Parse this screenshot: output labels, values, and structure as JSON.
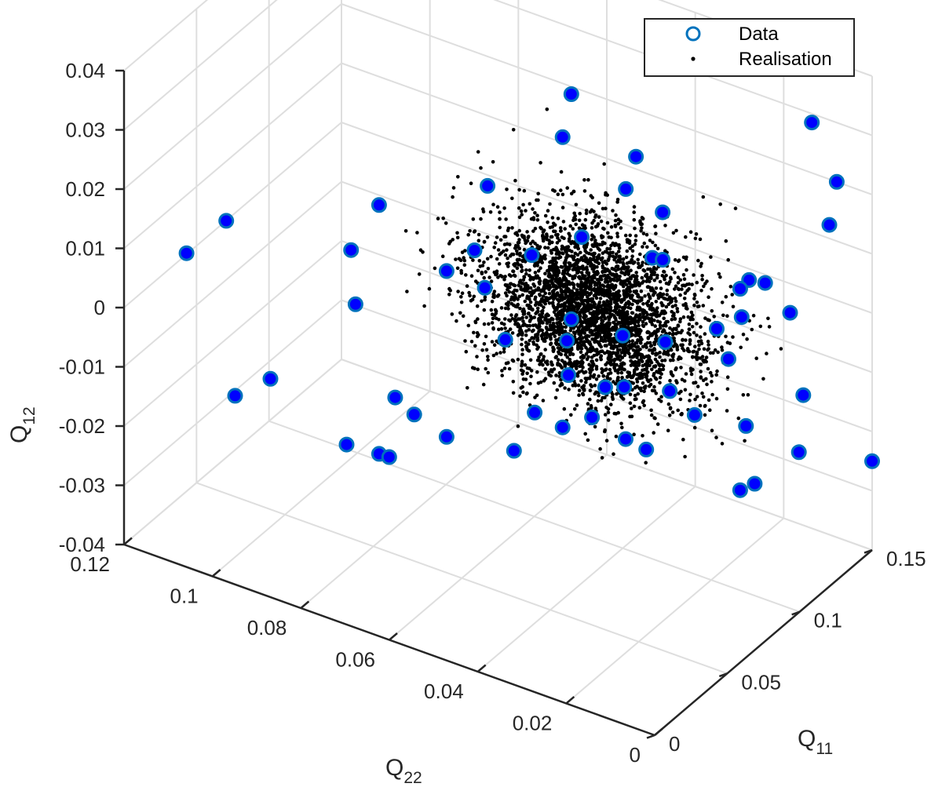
{
  "chart_data": {
    "type": "scatter",
    "dimensions": 3,
    "axes": {
      "x": {
        "label": "Q",
        "label_subscript": "11",
        "lim": [
          0,
          0.15
        ],
        "ticks": [
          0,
          0.05,
          0.1,
          0.15
        ],
        "tick_labels": [
          "0",
          "0.05",
          "0.1",
          "0.15"
        ]
      },
      "y": {
        "label": "Q",
        "label_subscript": "22",
        "lim": [
          0,
          0.12
        ],
        "ticks": [
          0,
          0.02,
          0.04,
          0.06,
          0.08,
          0.1,
          0.12
        ],
        "tick_labels": [
          "0",
          "0.02",
          "0.04",
          "0.06",
          "0.08",
          "0.1",
          "0.12"
        ]
      },
      "z": {
        "label": "Q",
        "label_subscript": "12",
        "lim": [
          -0.04,
          0.04
        ],
        "ticks": [
          -0.04,
          -0.03,
          -0.02,
          -0.01,
          0,
          0.01,
          0.02,
          0.03,
          0.04
        ],
        "tick_labels": [
          "-0.04",
          "-0.03",
          "-0.02",
          "-0.01",
          "0",
          "0.01",
          "0.02",
          "0.03",
          "0.04"
        ]
      }
    },
    "grid": true,
    "legend": {
      "position": "top-right",
      "entries": [
        {
          "label": "Data"
        },
        {
          "label": "Realisation"
        }
      ]
    },
    "series": [
      {
        "name": "Data",
        "marker": "circle",
        "edge_color": "#0072BD",
        "face_color": "#0000ff",
        "points": [
          [
            0.095,
            0.05,
            0.035
          ],
          [
            0.089,
            0.05,
            0.029
          ],
          [
            0.145,
            0.012,
            0.03
          ],
          [
            0.15,
            0.008,
            0.02
          ],
          [
            0.151,
            0.01,
            0.012
          ],
          [
            0.103,
            0.038,
            0.026
          ],
          [
            0.096,
            0.038,
            0.022
          ],
          [
            0.097,
            0.03,
            0.02
          ],
          [
            0.083,
            0.065,
            0.018
          ],
          [
            0.06,
            0.082,
            0.015
          ],
          [
            0.09,
            0.046,
            0.013
          ],
          [
            0.096,
            0.032,
            0.012
          ],
          [
            0.097,
            0.03,
            0.012
          ],
          [
            0.074,
            0.065,
            0.009
          ],
          [
            0.083,
            0.055,
            0.009
          ],
          [
            0.12,
            0.018,
            0.007
          ],
          [
            0.125,
            0.016,
            0.006
          ],
          [
            0.12,
            0.02,
            0.005
          ],
          [
            0.059,
            0.088,
            0.006
          ],
          [
            0.04,
            0.11,
            0.009
          ],
          [
            0.037,
            0.118,
            0.002
          ],
          [
            0.07,
            0.07,
            0.005
          ],
          [
            0.075,
            0.063,
            0.003
          ],
          [
            0.121,
            0.02,
            0.0
          ],
          [
            0.13,
            0.012,
            0.001
          ],
          [
            0.116,
            0.024,
            -0.002
          ],
          [
            0.056,
            0.086,
            -0.002
          ],
          [
            0.095,
            0.05,
            -0.003
          ],
          [
            0.103,
            0.041,
            -0.005
          ],
          [
            0.108,
            0.033,
            -0.005
          ],
          [
            0.08,
            0.06,
            -0.006
          ],
          [
            0.092,
            0.05,
            -0.006
          ],
          [
            0.118,
            0.022,
            -0.007
          ],
          [
            0.093,
            0.05,
            -0.012
          ],
          [
            0.097,
            0.043,
            -0.013
          ],
          [
            0.108,
            0.032,
            -0.013
          ],
          [
            0.101,
            0.04,
            -0.013
          ],
          [
            0.133,
            0.01,
            -0.013
          ],
          [
            0.085,
            0.055,
            -0.018
          ],
          [
            0.094,
            0.045,
            -0.018
          ],
          [
            0.113,
            0.028,
            -0.017
          ],
          [
            0.124,
            0.02,
            -0.019
          ],
          [
            0.065,
            0.08,
            -0.018
          ],
          [
            0.089,
            0.05,
            -0.02
          ],
          [
            0.07,
            0.07,
            -0.023
          ],
          [
            0.107,
            0.037,
            -0.024
          ],
          [
            0.04,
            0.1,
            -0.015
          ],
          [
            0.066,
            0.076,
            -0.02
          ],
          [
            0.13,
            0.01,
            -0.022
          ],
          [
            0.102,
            0.04,
            -0.022
          ],
          [
            0.086,
            0.06,
            -0.026
          ],
          [
            0.04,
            0.108,
            -0.02
          ],
          [
            0.15,
            0.0,
            -0.025
          ],
          [
            0.06,
            0.082,
            -0.027
          ],
          [
            0.062,
            0.09,
            -0.028
          ],
          [
            0.067,
            0.082,
            -0.029
          ],
          [
            0.12,
            0.02,
            -0.029
          ],
          [
            0.13,
            0.02,
            -0.03
          ]
        ]
      },
      {
        "name": "Realisation",
        "marker": "point",
        "color": "#000000",
        "distribution": {
          "count": 3500,
          "mean": [
            0.095,
            0.045,
            0.0
          ],
          "std": [
            0.013,
            0.012,
            0.0068
          ]
        }
      }
    ]
  }
}
